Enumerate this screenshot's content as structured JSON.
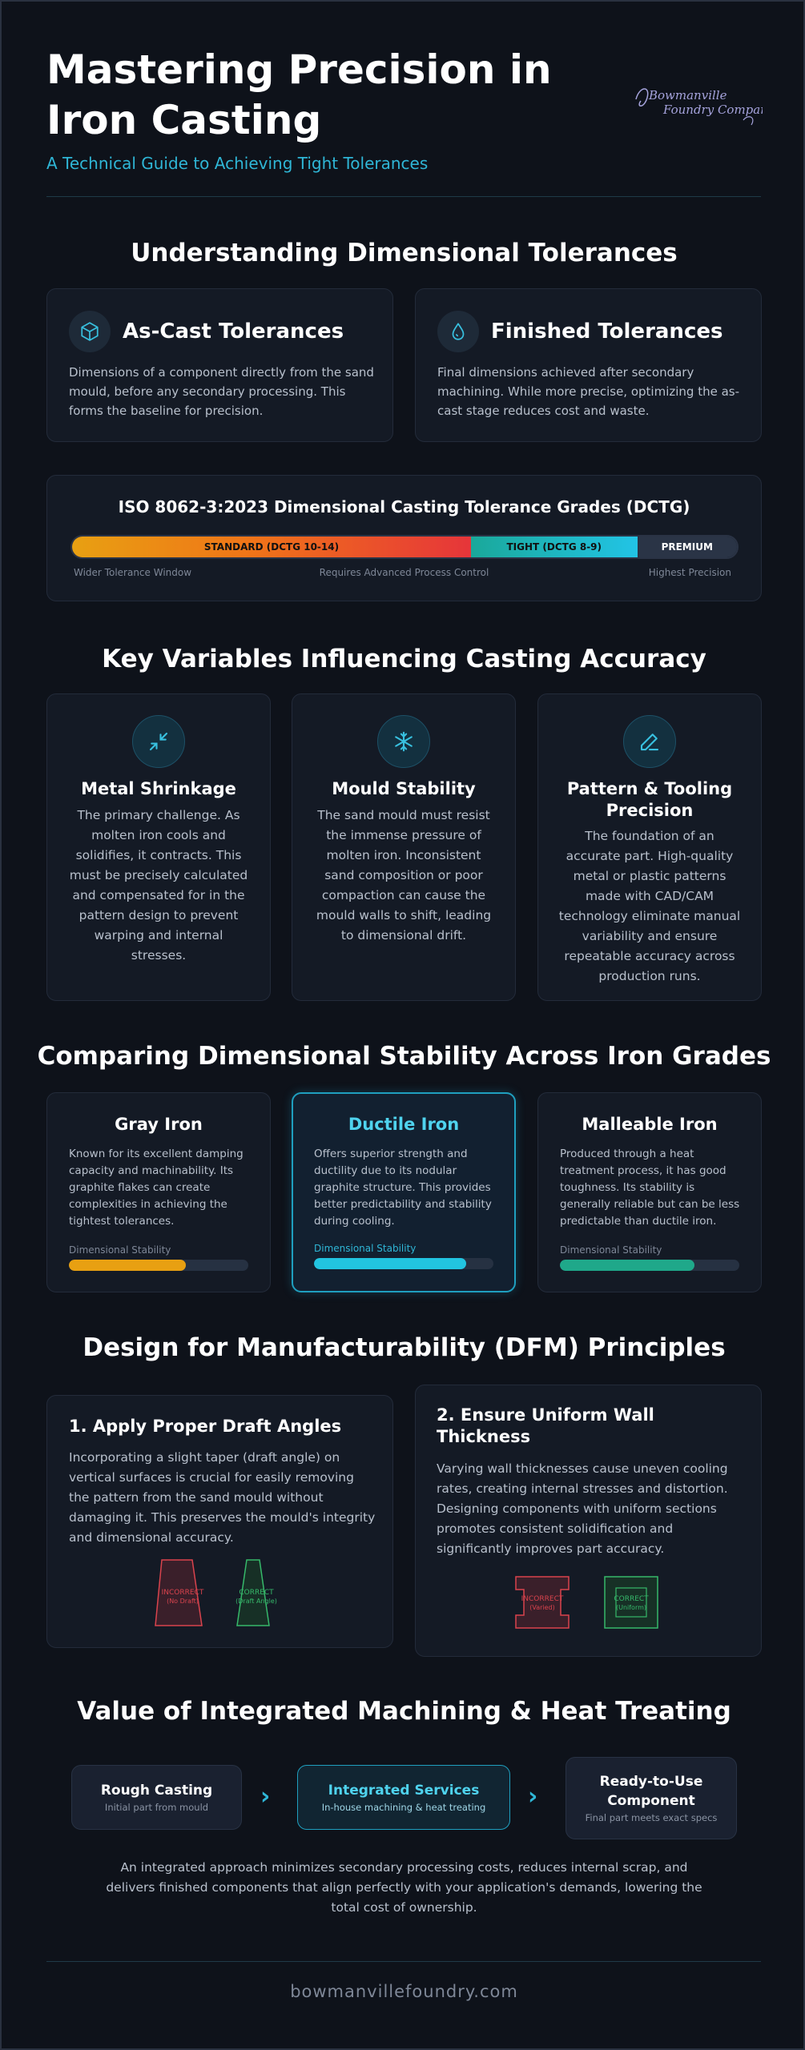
{
  "header": {
    "title": "Mastering Precision in Iron Casting",
    "subtitle": "A Technical Guide to Achieving Tight Tolerances",
    "logo_text_line1": "Bowmanville",
    "logo_text_line2": "Foundry Company"
  },
  "tolerances": {
    "section_title": "Understanding Dimensional Tolerances",
    "as_cast": {
      "title": "As-Cast Tolerances",
      "icon": "cube-icon",
      "text": "Dimensions of a component directly from the sand mould, before any secondary processing. This forms the baseline for precision."
    },
    "finished": {
      "title": "Finished Tolerances",
      "icon": "drop-icon",
      "text": "Final dimensions achieved after secondary machining. While more precise, optimizing the as-cast stage reduces cost and waste."
    },
    "iso": {
      "title": "ISO 8062-3:2023 Dimensional Casting Tolerance Grades (DCTG)",
      "segments": [
        {
          "label": "STANDARD (DCTG 10-14)",
          "fraction": 0.6,
          "color": "#e8a012"
        },
        {
          "label": "TIGHT (DCTG 8-9)",
          "fraction": 0.25,
          "color": "#1fb3c8"
        },
        {
          "label": "PREMIUM",
          "fraction": 0.15,
          "color": "#2a3446"
        }
      ],
      "caption_left": "Wider Tolerance Window",
      "caption_center": "Requires Advanced Process Control",
      "caption_right": "Highest Precision"
    }
  },
  "variables": {
    "section_title": "Key Variables Influencing Casting Accuracy",
    "items": [
      {
        "title": "Metal Shrinkage",
        "icon": "shrink-arrows-icon",
        "text": "The primary challenge. As molten iron cools and solidifies, it contracts. This must be precisely calculated and compensated for in the pattern design to prevent warping and internal stresses."
      },
      {
        "title": "Mould Stability",
        "icon": "snowflake-icon",
        "text": "The sand mould must resist the immense pressure of molten iron. Inconsistent sand composition or poor compaction can cause the mould walls to shift, leading to dimensional drift."
      },
      {
        "title": "Pattern & Tooling Precision",
        "icon": "pencil-icon",
        "text": "The foundation of an accurate part. High-quality metal or plastic patterns made with CAD/CAM technology eliminate manual variability and ensure repeatable accuracy across production runs."
      }
    ]
  },
  "grades": {
    "section_title": "Comparing Dimensional Stability Across Iron Grades",
    "stability_label": "Dimensional Stability",
    "items": [
      {
        "title": "Gray Iron",
        "text": "Known for its excellent damping capacity and machinability. Its graphite flakes can create complexities in achieving the tightest tolerances.",
        "stability": 0.65,
        "color": "#e8a012",
        "title_color": "#ffffff"
      },
      {
        "title": "Ductile Iron",
        "text": "Offers superior strength and ductility due to its nodular graphite structure. This provides better predictability and stability during cooling.",
        "stability": 0.85,
        "color": "#22c4e0",
        "title_color": "#4fd3ee"
      },
      {
        "title": "Malleable Iron",
        "text": "Produced through a heat treatment process, it has good toughness. Its stability is generally reliable but can be less predictable than ductile iron.",
        "stability": 0.75,
        "color": "#1fa88a",
        "title_color": "#ffffff"
      }
    ]
  },
  "dfm": {
    "section_title": "Design for Manufacturability (DFM) Principles",
    "draft": {
      "title": "1. Apply Proper Draft Angles",
      "text": "Incorporating a slight taper (draft angle) on vertical surfaces is crucial for easily removing the pattern from the sand mould without damaging it. This preserves the mould's integrity and dimensional accuracy.",
      "incorrect_label": "INCORRECT",
      "incorrect_sub": "(No Draft)",
      "correct_label": "CORRECT",
      "correct_sub": "(Draft Angle)"
    },
    "wall": {
      "title": "2. Ensure Uniform Wall Thickness",
      "text": "Varying wall thicknesses cause uneven cooling rates, creating internal stresses and distortion. Designing components with uniform sections promotes consistent solidification and significantly improves part accuracy.",
      "incorrect_label": "INCORRECT",
      "incorrect_sub": "(Varied)",
      "correct_label": "CORRECT",
      "correct_sub": "(Uniform)"
    }
  },
  "integrated": {
    "section_title": "Value of Integrated Machining & Heat Treating",
    "steps": [
      {
        "title": "Rough Casting",
        "sub": "Initial part from mould"
      },
      {
        "title": "Integrated Services",
        "sub": "In-house machining & heat treating"
      },
      {
        "title": "Ready-to-Use Component",
        "sub": "Final part meets exact specs"
      }
    ],
    "summary": "An integrated approach minimizes secondary processing costs, reduces internal scrap, and delivers finished components that align perfectly with your application's demands, lowering the total cost of ownership."
  },
  "footer": {
    "site": "bowmanvillefoundry.com"
  }
}
